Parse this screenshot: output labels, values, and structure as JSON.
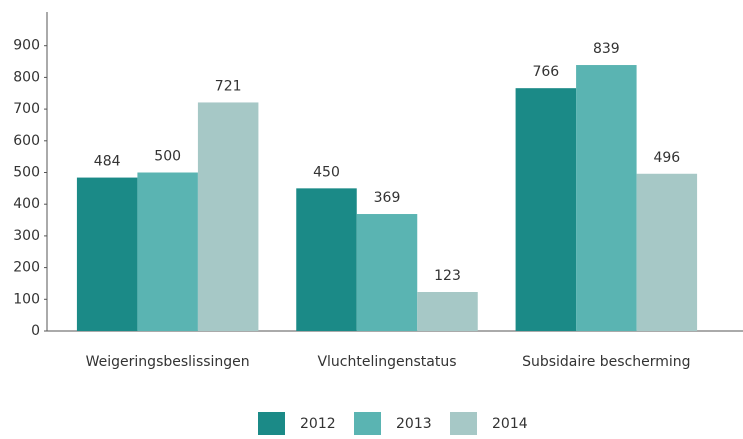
{
  "chart_data": {
    "type": "bar",
    "categories": [
      "Weigeringsbeslissingen",
      "Vluchtelingenstatus",
      "Subsidaire bescherming"
    ],
    "series": [
      {
        "name": "2012",
        "color": "#1b8a87",
        "values": [
          484,
          450,
          766
        ]
      },
      {
        "name": "2013",
        "color": "#5ab4b2",
        "values": [
          500,
          369,
          839
        ]
      },
      {
        "name": "2014",
        "color": "#a6c8c6",
        "values": [
          721,
          123,
          496
        ]
      }
    ],
    "ylim": [
      0,
      1000
    ],
    "yticks": [
      0,
      100,
      200,
      300,
      400,
      500,
      600,
      700,
      800,
      900
    ],
    "grid": false,
    "legend": "bottom"
  }
}
